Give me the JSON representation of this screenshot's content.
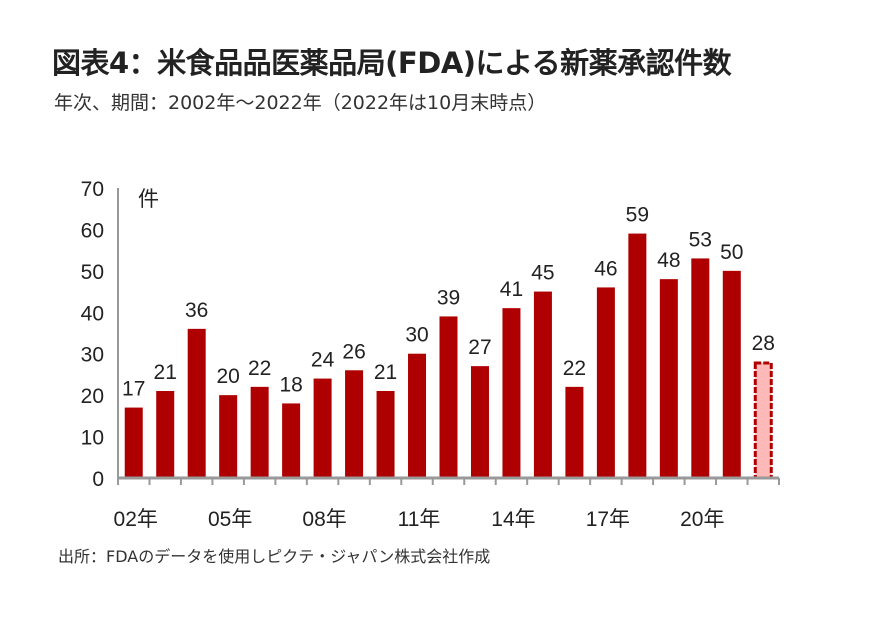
{
  "title": "図表4：米食品品医薬品局(FDA)による新薬承認件数",
  "subtitle": "年次、期間：2002年～2022年（2022年は10月末時点）",
  "source": "出所：FDAのデータを使用しピクテ・ジャパン株式会社作成",
  "chart_data": {
    "type": "bar",
    "title": "図表4：米食品品医薬品局(FDA)による新薬承認件数",
    "ylabel": "件",
    "xlabel": "",
    "ylim": [
      0,
      70
    ],
    "yticks": [
      0,
      10,
      20,
      30,
      40,
      50,
      60,
      70
    ],
    "categories": [
      "2002",
      "2003",
      "2004",
      "2005",
      "2006",
      "2007",
      "2008",
      "2009",
      "2010",
      "2011",
      "2012",
      "2013",
      "2014",
      "2015",
      "2016",
      "2017",
      "2018",
      "2019",
      "2020",
      "2021",
      "2022"
    ],
    "xtick_labels": [
      {
        "index": 0,
        "label": "02年"
      },
      {
        "index": 3,
        "label": "05年"
      },
      {
        "index": 6,
        "label": "08年"
      },
      {
        "index": 9,
        "label": "11年"
      },
      {
        "index": 12,
        "label": "14年"
      },
      {
        "index": 15,
        "label": "17年"
      },
      {
        "index": 18,
        "label": "20年"
      }
    ],
    "values": [
      17,
      21,
      36,
      20,
      22,
      18,
      24,
      26,
      21,
      30,
      39,
      27,
      41,
      45,
      22,
      46,
      59,
      48,
      53,
      50,
      28
    ],
    "partial_index": 20,
    "colors": {
      "bar": "#AE0000",
      "partial_fill": "#FFB9B9",
      "partial_border": "#AE0000",
      "axis": "#999999"
    },
    "grid": false
  }
}
